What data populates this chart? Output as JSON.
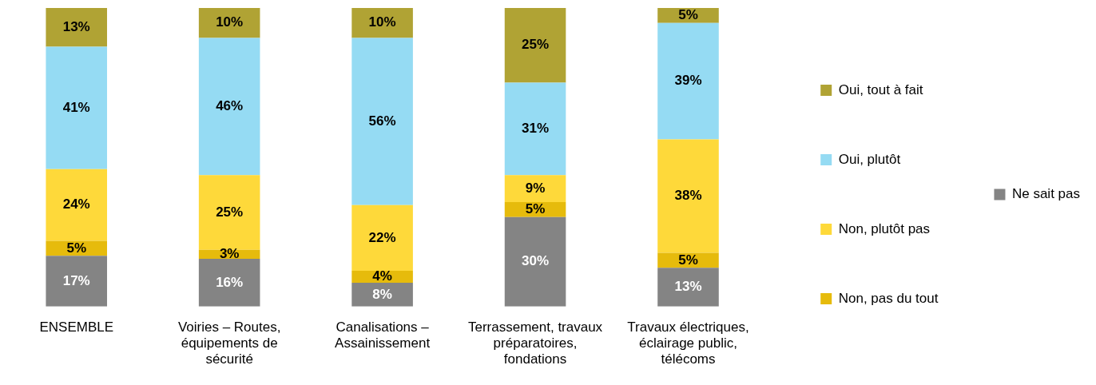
{
  "chart_data": {
    "type": "bar",
    "stacked": true,
    "legend": "right",
    "grid": false,
    "categories": [
      "ENSEMBLE",
      "Voiries – Routes, équipements de sécurité",
      "Canalisations – Assainissement",
      "Terrassement, travaux préparatoires, fondations",
      "Travaux électriques, éclairage public, télécoms"
    ],
    "series": [
      {
        "name": "Ne sait pas",
        "color": "#848484",
        "values": [
          17,
          16,
          8,
          30,
          13
        ],
        "value_labels": [
          "17%",
          "16%",
          "8%",
          "30%",
          "13%"
        ]
      },
      {
        "name": "Non, pas du tout",
        "color": "#e6bb0c",
        "values": [
          5,
          3,
          4,
          5,
          5
        ],
        "value_labels": [
          "5%",
          "3%",
          "4%",
          "5%",
          "5%"
        ]
      },
      {
        "name": "Non, plutôt pas",
        "color": "#fed93a",
        "values": [
          24,
          25,
          22,
          9,
          38
        ],
        "value_labels": [
          "24%",
          "25%",
          "22%",
          "9%",
          "38%"
        ]
      },
      {
        "name": "Oui, plutôt",
        "color": "#95dbf3",
        "values": [
          41,
          46,
          56,
          31,
          39
        ],
        "value_labels": [
          "41%",
          "46%",
          "56%",
          "31%",
          "39%"
        ]
      },
      {
        "name": "Oui, tout à fait",
        "color": "#b0a334",
        "values": [
          13,
          10,
          10,
          25,
          5
        ],
        "value_labels": [
          "13%",
          "10%",
          "10%",
          "25%",
          "5%"
        ]
      }
    ]
  }
}
